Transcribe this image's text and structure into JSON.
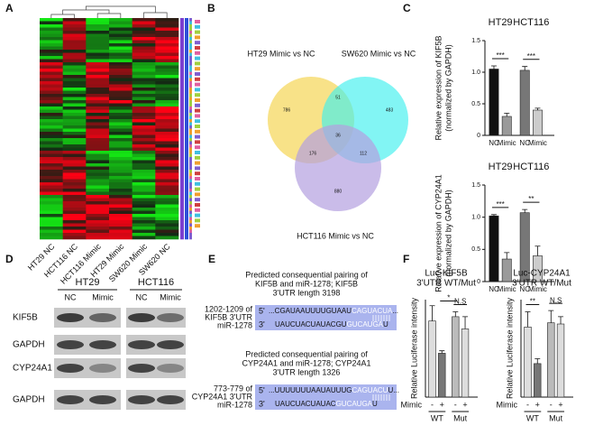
{
  "panels": [
    "A",
    "B",
    "C",
    "D",
    "E",
    "F"
  ],
  "heatmap": {
    "columns": [
      "HT29 NC",
      "HCT116 NC",
      "HCT116 Mimic",
      "HT29 Mimic",
      "SW620 Mimic",
      "SW620 NC"
    ]
  },
  "venn": {
    "sets": [
      "HT29 Mimic vs NC",
      "SW620 Mimic vs NC",
      "HCT116 Mimic vs NC"
    ],
    "regions": [
      "786",
      "51",
      "483",
      "36",
      "176",
      "112",
      "880"
    ]
  },
  "blot": {
    "cell_lines": [
      "HT29",
      "HCT116"
    ],
    "lanes": [
      "NC",
      "Mimic",
      "NC",
      "Mimic"
    ],
    "proteins": [
      "KIF5B",
      "GAPDH",
      "CYP24A1",
      "GAPDH"
    ]
  },
  "pairing": [
    {
      "caption": [
        "Predicted consequential pairing of",
        "KIF5B and miR-1278; KIF5B",
        "3'UTR length 3198"
      ],
      "site": [
        "1202-1209 of",
        "KIF5B 3'UTR"
      ],
      "mirna": "miR-1278",
      "utr": {
        "end": "5'",
        "seq": [
          "...CGAUAAUUUUGUAAU",
          "CAGUACUA",
          "..."
        ]
      },
      "mir": {
        "end": "3'",
        "seq": [
          "UAUCUACUAUACGU",
          "GUCAUGA",
          "U"
        ]
      }
    },
    {
      "caption": [
        "Predicted consequential pairing of",
        "CYP24A1 and miR-1278; CYP24A1",
        "3'UTR length 1326"
      ],
      "site": [
        "773-779 of",
        "CYP24A1 3'UTR"
      ],
      "mirna": "miR-1278",
      "utr": {
        "end": "5'",
        "seq": [
          "...UUUUUUUAAUAUUUG",
          "CAGUACU",
          "U..."
        ]
      },
      "mir": {
        "end": "3'",
        "seq": [
          "UAUCUACUAUAC",
          "GUCAUGA",
          "U"
        ]
      }
    }
  ],
  "chart_data": [
    {
      "type": "bar",
      "ylabel": [
        "Relative expression of KIF5B",
        "(normalized by GAPDH)"
      ],
      "groups": [
        "HT29",
        "HCT116"
      ],
      "group_position": "top",
      "categories": [
        "NC",
        "Mimic",
        "NC",
        "Mimic"
      ],
      "values": [
        1.05,
        0.3,
        1.03,
        0.4
      ],
      "errors": [
        0.05,
        0.05,
        0.06,
        0.03
      ],
      "colors": [
        "#111111",
        "#9a9a9a",
        "#777777",
        "#cccccc"
      ],
      "significance": [
        "***",
        null,
        "***"
      ],
      "ylim": [
        0,
        1.5
      ],
      "yticks": [
        0,
        0.5,
        {
          "value": 1,
          "label": "1.0"
        },
        1.5
      ]
    },
    {
      "type": "bar",
      "ylabel": [
        "Relative expression of CYP24A1",
        "(normalized by GAPDH)"
      ],
      "groups": [
        "HT29",
        "HCT116"
      ],
      "group_position": "top",
      "categories": [
        "NC",
        "Mimic",
        "NC",
        "Mimic"
      ],
      "values": [
        1.02,
        0.35,
        1.07,
        0.4
      ],
      "errors": [
        0.02,
        0.1,
        0.05,
        0.15
      ],
      "colors": [
        "#111111",
        "#9a9a9a",
        "#777777",
        "#cccccc"
      ],
      "significance": [
        "***",
        null,
        "**"
      ],
      "ylim": [
        0,
        1.5
      ],
      "yticks": [
        0,
        0.5,
        {
          "value": 1,
          "label": "1.0"
        },
        1.5
      ]
    },
    {
      "type": "bar",
      "title": [
        "Luc-KIF5B",
        "3'UTR WT/Mut"
      ],
      "ylabel": [
        "Relative Luciferase intensity"
      ],
      "treatment": "Mimic",
      "groups": [
        "WT",
        "Mut"
      ],
      "group_position": "bottom",
      "categories": [
        "-",
        "+",
        "-",
        "+"
      ],
      "values": [
        1.25,
        0.72,
        1.32,
        1.12
      ],
      "errors": [
        0.25,
        0.04,
        0.08,
        0.2
      ],
      "colors": [
        "#dddddd",
        "#777777",
        "#bbbbbb",
        "#dddddd"
      ],
      "significance": [
        null,
        "*",
        "N.S"
      ],
      "ylim": [
        0,
        1.6
      ]
    },
    {
      "type": "bar",
      "title": [
        "Luc-CYP24A1",
        "3'UTR WT/Mut"
      ],
      "ylabel": [
        "Relative Luciferase intensity"
      ],
      "treatment": "Mimic",
      "groups": [
        "WT",
        "Mut"
      ],
      "group_position": "bottom",
      "categories": [
        "-",
        "+",
        "-",
        "+"
      ],
      "values": [
        1.15,
        0.55,
        1.22,
        1.2
      ],
      "errors": [
        0.25,
        0.08,
        0.2,
        0.12
      ],
      "colors": [
        "#dddddd",
        "#777777",
        "#bbbbbb",
        "#dddddd"
      ],
      "significance": [
        "**",
        null,
        "N.S"
      ],
      "ylim": [
        0,
        1.6
      ]
    }
  ]
}
